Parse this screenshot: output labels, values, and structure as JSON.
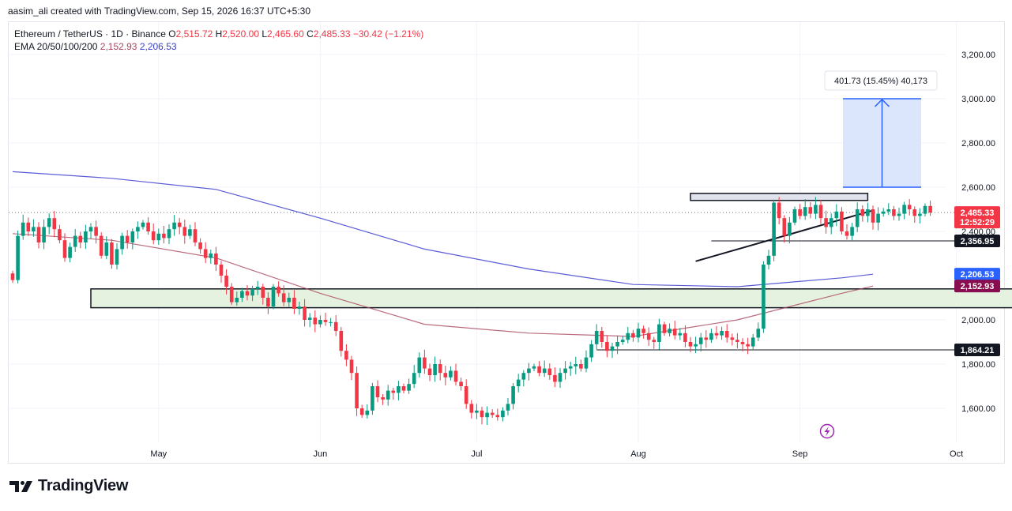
{
  "header": {
    "attribution": "aasim_ali created with TradingView.com, Sep 15, 2026 16:37 UTC+5:30"
  },
  "legend": {
    "symbol": "Ethereum / TetherUS · 1D · Binance",
    "open_label": "O",
    "open": "2,515.72",
    "high_label": "H",
    "high": "2,520.00",
    "low_label": "L",
    "low": "2,465.60",
    "close_label": "C",
    "close": "2,485.33",
    "change": "−30.42 (−1.21%)",
    "ema_label": "EMA 20/50/100/200",
    "ema_1": "2,152.93",
    "ema_2": "2,206.53"
  },
  "measure": {
    "label": "401.73 (15.45%) 40,173",
    "from": 2600,
    "to": 3000
  },
  "footer": {
    "brand": "TradingView"
  },
  "colors": {
    "up": "#089981",
    "down": "#f23645",
    "ema_fast": "#a9465c",
    "ema_slow": "#5b5bd6",
    "zone_fill": "#e6f2e0",
    "measure_fill": "#dbe5fb",
    "measure_line": "#2962ff"
  },
  "chart_data": {
    "type": "candlestick",
    "yticks": [
      "3,200.00",
      "3,000.00",
      "2,800.00",
      "2,600.00",
      "2,400.00",
      "2,000.00",
      "1,800.00",
      "1,600.00"
    ],
    "ytick_values": [
      3200,
      3000,
      2800,
      2600,
      2400,
      2000,
      1800,
      1600
    ],
    "xticks": [
      "May",
      "Jun",
      "Jul",
      "Aug",
      "Sep",
      "Oct"
    ],
    "xtick_days": [
      29,
      60,
      90,
      121,
      152,
      182
    ],
    "price_tags": [
      {
        "label": "2,485.33",
        "sub": "12:52:29",
        "value": 2485.33,
        "bg": "#f23645"
      },
      {
        "label": "2,356.95",
        "value": 2356.95,
        "bg": "#131722"
      },
      {
        "label": "2,206.53",
        "value": 2206.53,
        "bg": "#2962ff"
      },
      {
        "label": "2,152.93",
        "value": 2152.93,
        "bg": "#880e4f"
      },
      {
        "label": "1,864.21",
        "value": 1864.21,
        "bg": "#131722"
      }
    ],
    "horizontal_lines": [
      {
        "value": 2356.95,
        "from_day": 135
      },
      {
        "value": 1864.21,
        "from_day": 113
      }
    ],
    "zones": [
      {
        "y_low": 2055,
        "y_high": 2140,
        "from_day": 16,
        "to_day": 199
      },
      {
        "y_low": 2540,
        "y_high": 2572,
        "from_day": 131,
        "to_day": 165
      }
    ],
    "trendline": {
      "from": [
        132,
        2265
      ],
      "to": [
        166,
        2495
      ]
    },
    "candles": {
      "start_day": 1,
      "open_start": 2210,
      "closes": [
        2180,
        2380,
        2440,
        2400,
        2420,
        2350,
        2420,
        2460,
        2410,
        2360,
        2280,
        2330,
        2380,
        2350,
        2400,
        2420,
        2380,
        2290,
        2350,
        2250,
        2320,
        2380,
        2350,
        2400,
        2420,
        2440,
        2400,
        2360,
        2390,
        2370,
        2410,
        2440,
        2420,
        2380,
        2410,
        2350,
        2320,
        2280,
        2300,
        2250,
        2200,
        2150,
        2080,
        2100,
        2130,
        2110,
        2140,
        2150,
        2100,
        2060,
        2150,
        2120,
        2080,
        2100,
        2050,
        2060,
        2000,
        2010,
        1980,
        2000,
        1990,
        1990,
        1950,
        1860,
        1820,
        1760,
        1600,
        1570,
        1590,
        1700,
        1650,
        1640,
        1680,
        1670,
        1700,
        1680,
        1710,
        1760,
        1830,
        1780,
        1750,
        1800,
        1760,
        1740,
        1770,
        1720,
        1700,
        1620,
        1580,
        1590,
        1560,
        1580,
        1570,
        1560,
        1590,
        1620,
        1700,
        1730,
        1760,
        1780,
        1790,
        1760,
        1780,
        1750,
        1720,
        1760,
        1780,
        1790,
        1800,
        1780,
        1830,
        1890,
        1950,
        1900,
        1860,
        1880,
        1900,
        1910,
        1940,
        1920,
        1960,
        1940,
        1910,
        1900,
        1980,
        1940,
        1960,
        1930,
        1940,
        1900,
        1880,
        1890,
        1920,
        1910,
        1940,
        1930,
        1950,
        1920,
        1910,
        1900,
        1890,
        1880,
        1920,
        1960,
        2250,
        2290,
        2530,
        2460,
        2380,
        2440,
        2500,
        2470,
        2510,
        2480,
        2520,
        2460,
        2420,
        2460,
        2490,
        2400,
        2380,
        2420,
        2500,
        2470,
        2500,
        2440,
        2480,
        2490,
        2500,
        2470,
        2480,
        2520,
        2500,
        2470,
        2480,
        2515,
        2485
      ]
    },
    "ema_fast": {
      "days": [
        1,
        20,
        40,
        60,
        80,
        100,
        120,
        140,
        160,
        166
      ],
      "values": [
        2390,
        2360,
        2280,
        2120,
        1980,
        1940,
        1925,
        2000,
        2120,
        2152.93
      ]
    },
    "ema_slow": {
      "days": [
        1,
        20,
        40,
        60,
        80,
        100,
        120,
        140,
        160,
        166
      ],
      "values": [
        2670,
        2640,
        2590,
        2460,
        2320,
        2230,
        2160,
        2150,
        2190,
        2206.53
      ]
    }
  }
}
